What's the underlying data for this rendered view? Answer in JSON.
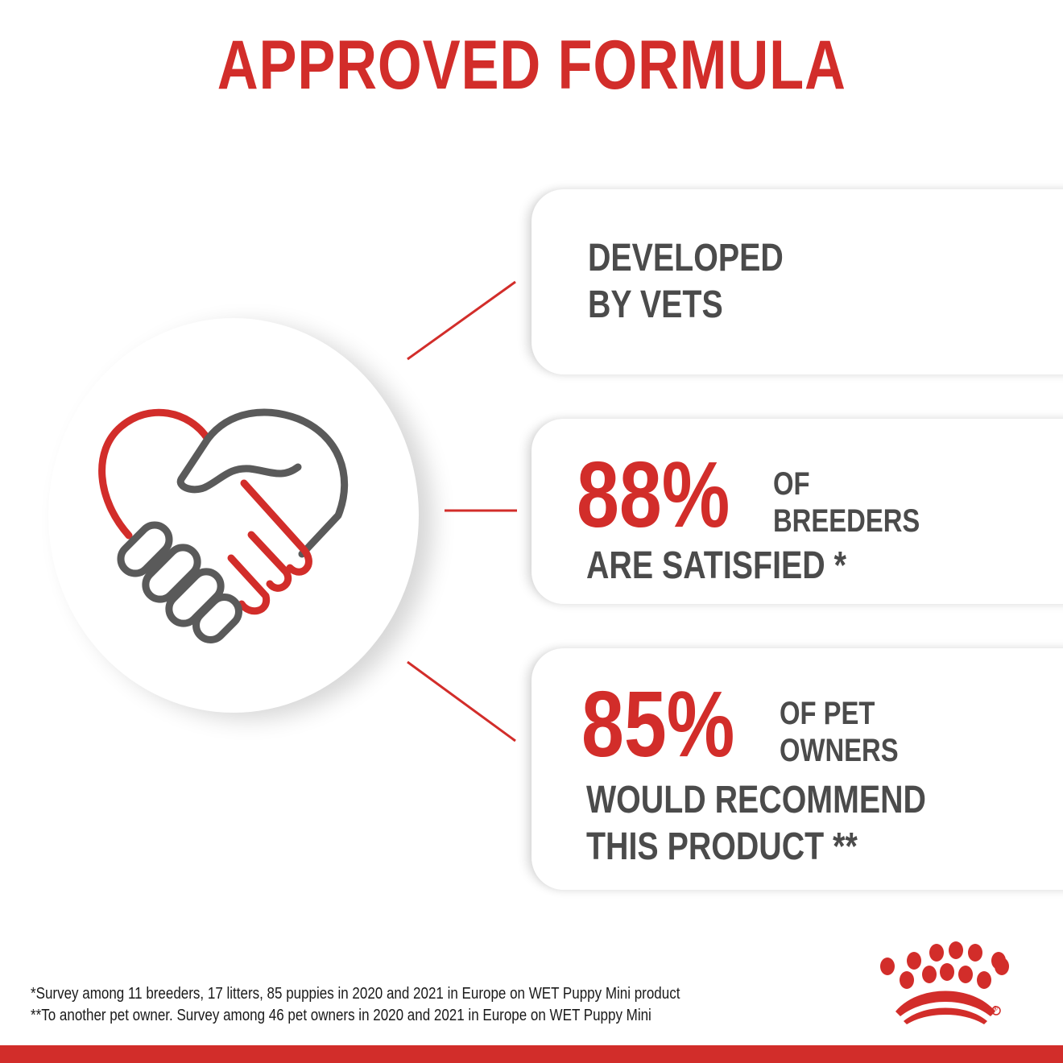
{
  "title": "APPROVED FORMULA",
  "icon": "heart-handshake-icon",
  "colors": {
    "accent": "#d22d2a",
    "text": "#4b4b4b"
  },
  "cards": [
    {
      "line1": "DEVELOPED",
      "line2": "BY VETS"
    },
    {
      "percent": "88%",
      "label1": "OF",
      "label2": "BREEDERS",
      "line": "ARE SATISFIED *"
    },
    {
      "percent": "85%",
      "label1": "OF PET",
      "label2": "OWNERS",
      "line1": "WOULD RECOMMEND",
      "line2": "THIS PRODUCT **"
    }
  ],
  "footnotes": [
    "*Survey among 11 breeders, 17 litters, 85 puppies in 2020 and 2021 in Europe on WET Puppy Mini product",
    "**To another pet owner. Survey among 46 pet owners in 2020 and 2021 in Europe on WET Puppy Mini"
  ],
  "logo": {
    "name": "crown-logo",
    "registered": "®"
  }
}
